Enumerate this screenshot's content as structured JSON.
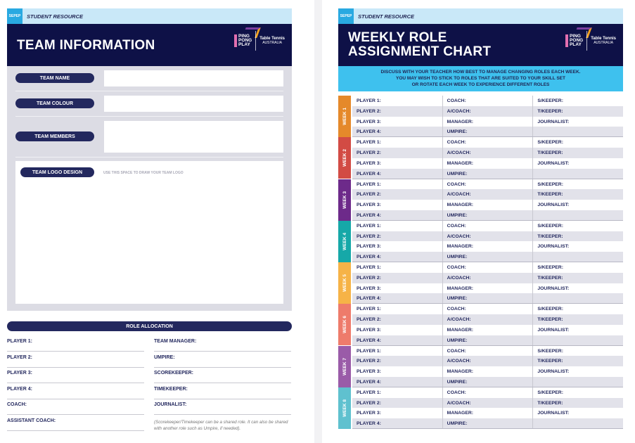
{
  "left_page": {
    "band": {
      "badge": "SEPEP",
      "label": "STUDENT RESOURCE"
    },
    "title": "TEAM INFORMATION",
    "logos": {
      "ppp": "PING PONG PLAY",
      "tta_1": "Table Tennis",
      "tta_2": "AUSTRALIA"
    },
    "fields": {
      "team_name": "TEAM NAME",
      "team_colour": "TEAM COLOUR",
      "team_members": "TEAM MEMBERS",
      "team_logo": "TEAM LOGO DESIGN",
      "logo_hint": "USE THIS SPACE TO DRAW YOUR TEAM LOGO"
    },
    "role_allocation": {
      "title": "ROLE ALLOCATION",
      "left": [
        "PLAYER 1:",
        "PLAYER 2:",
        "PLAYER 3:",
        "PLAYER 4:",
        "COACH:",
        "ASSISTANT COACH:"
      ],
      "right": [
        "TEAM MANAGER:",
        "UMPIRE:",
        "SCOREKEEPER:",
        "TIMEKEEPER:",
        "JOURNALIST:"
      ],
      "note": "(Scorekeeper/Timekeeper can be a shared role. It can also be shared with another role such as Umpire, if needed)."
    }
  },
  "right_page": {
    "band": {
      "badge": "SEPEP",
      "label": "STUDENT RESOURCE"
    },
    "title_1": "WEEKLY ROLE",
    "title_2": "ASSIGNMENT CHART",
    "logos": {
      "ppp": "PING PONG PLAY",
      "tta_1": "Table Tennis",
      "tta_2": "AUSTRALIA"
    },
    "instructions": [
      "DISCUSS WITH YOUR TEACHER HOW BEST TO MANAGE CHANGING ROLES EACH WEEK.",
      "YOU MAY WISH TO STICK TO ROLES THAT ARE SUITED TO YOUR SKILL SET",
      "OR ROTATE EACH WEEK TO EXPERIENCE DIFFERENT ROLES"
    ],
    "rows": [
      [
        "PLAYER 1:",
        "COACH:",
        "S/KEEPER:"
      ],
      [
        "PLAYER 2:",
        "A/COACH:",
        "T/KEEPER:"
      ],
      [
        "PLAYER 3:",
        "MANAGER:",
        "JOURNALIST:"
      ],
      [
        "PLAYER 4:",
        "UMPIRE:",
        ""
      ]
    ],
    "weeks": [
      {
        "label": "WEEK 1",
        "color": "#e5892a"
      },
      {
        "label": "WEEK 2",
        "color": "#d24b44"
      },
      {
        "label": "WEEK 3",
        "color": "#6d2a8a"
      },
      {
        "label": "WEEK 4",
        "color": "#16a8a8"
      },
      {
        "label": "WEEK 5",
        "color": "#f6b347"
      },
      {
        "label": "WEEK 6",
        "color": "#ee7b6b"
      },
      {
        "label": "WEEK 7",
        "color": "#9a5ba8"
      },
      {
        "label": "WEEK 8",
        "color": "#5fc1cf"
      }
    ]
  }
}
